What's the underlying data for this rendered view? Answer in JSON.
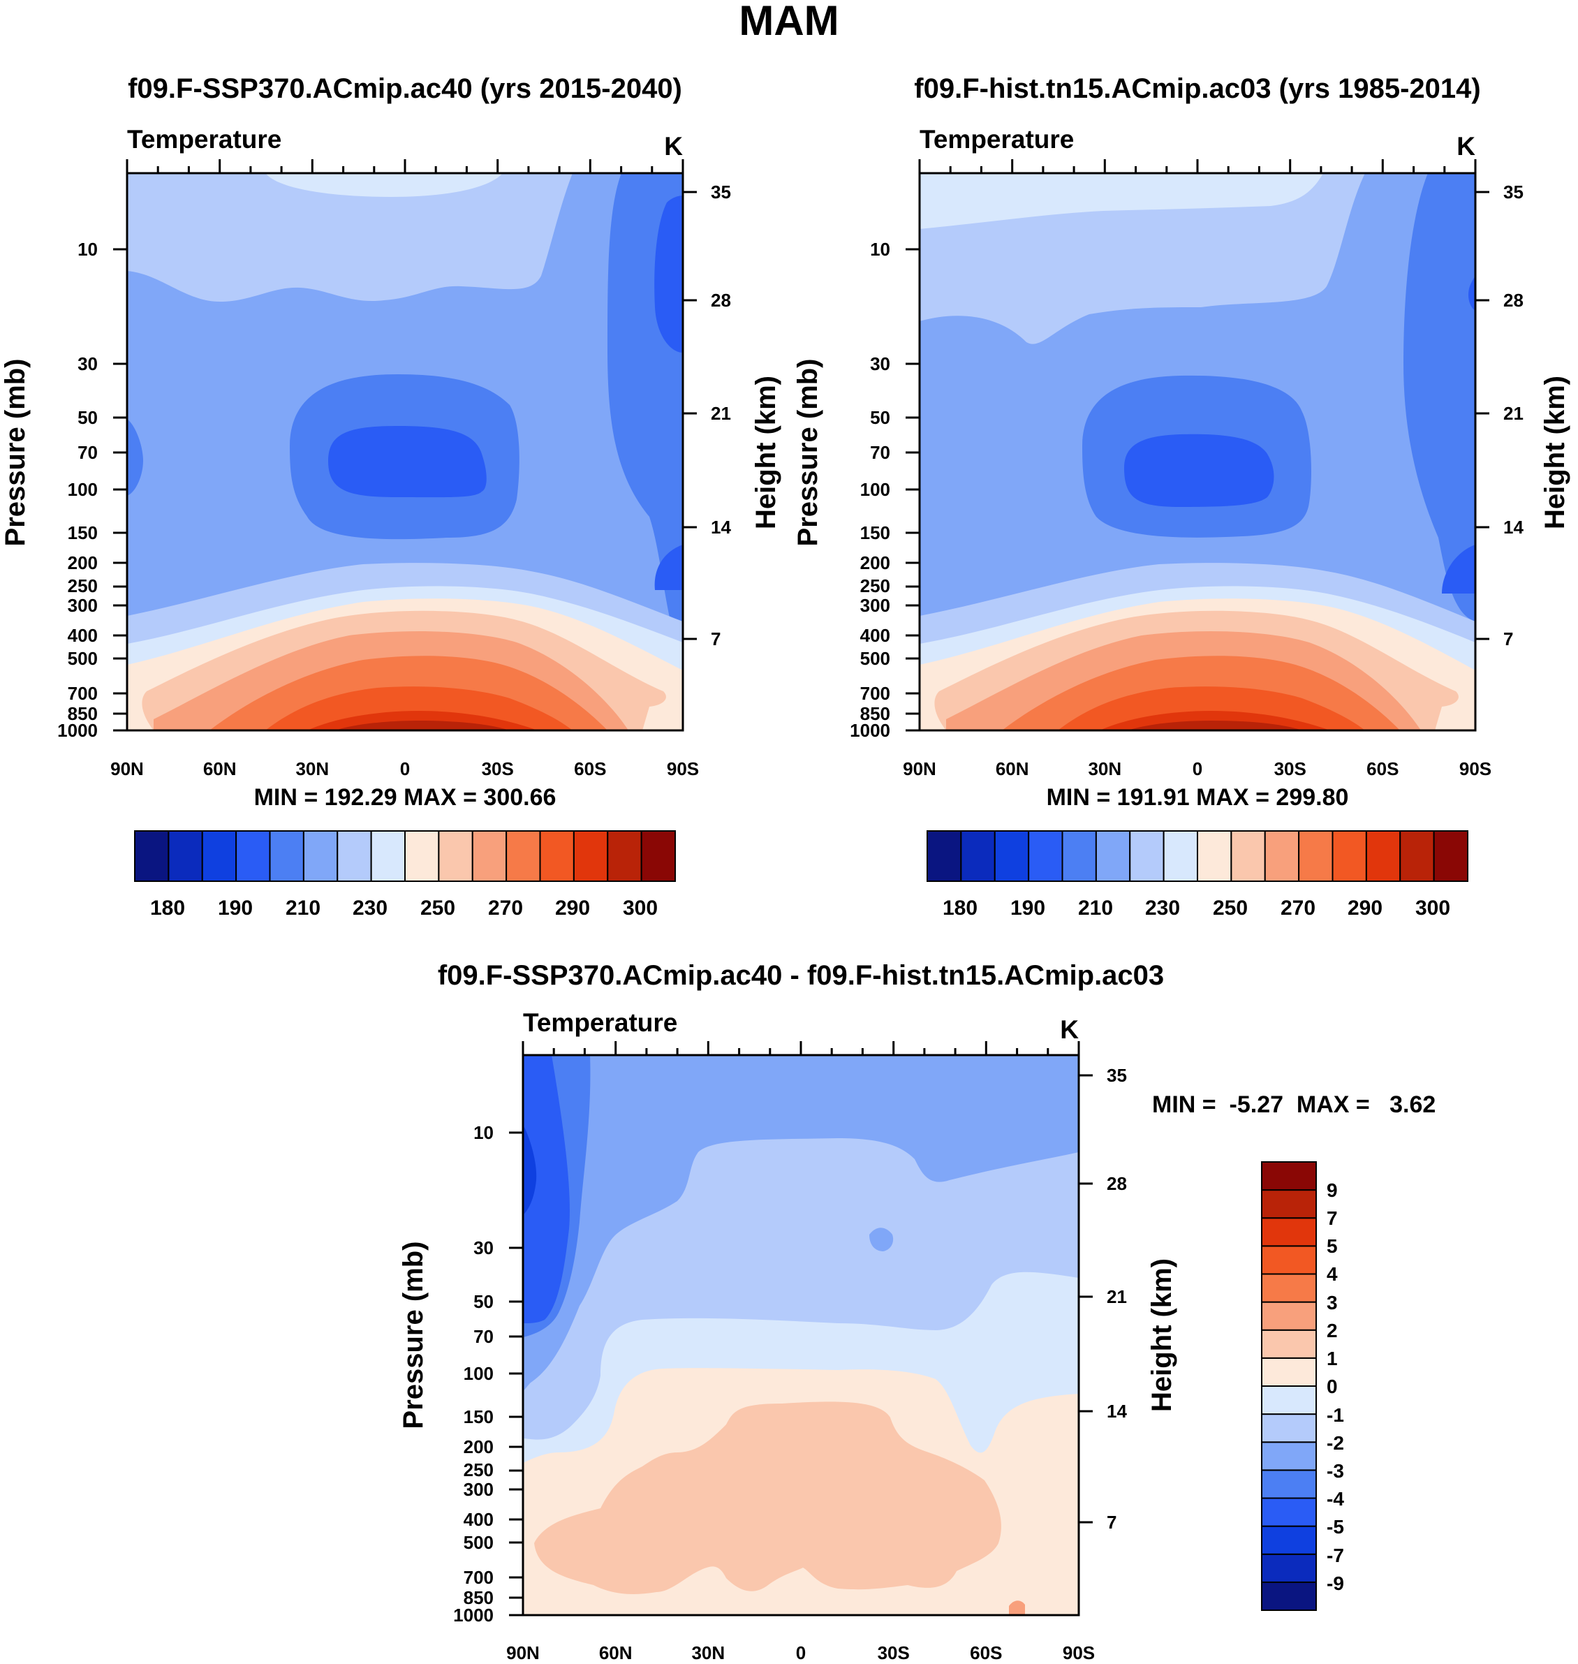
{
  "chart_data": {
    "title": "MAM",
    "type": "contour",
    "panels": [
      {
        "title": "f09.F-SSP370.ACmip.ac40 (yrs 2015-2040)",
        "variable": "Temperature",
        "units": "K",
        "ylabel": "Pressure (mb)",
        "ylabel_right": "Height (km)",
        "x_ticks": [
          "90N",
          "60N",
          "30N",
          "0",
          "30S",
          "60S",
          "90S"
        ],
        "y_ticks": [
          "10",
          "30",
          "50",
          "70",
          "100",
          "150",
          "200",
          "250",
          "300",
          "400",
          "500",
          "700",
          "850",
          "1000"
        ],
        "height_ticks": [
          "35",
          "28",
          "21",
          "14",
          "7"
        ],
        "stats": "MIN = 192.29  MAX = 300.66",
        "min": 192.29,
        "max": 300.66
      },
      {
        "title": "f09.F-hist.tn15.ACmip.ac03 (yrs 1985-2014)",
        "variable": "Temperature",
        "units": "K",
        "ylabel": "Pressure (mb)",
        "ylabel_right": "Height (km)",
        "x_ticks": [
          "90N",
          "60N",
          "30N",
          "0",
          "30S",
          "60S",
          "90S"
        ],
        "y_ticks": [
          "10",
          "30",
          "50",
          "70",
          "100",
          "150",
          "200",
          "250",
          "300",
          "400",
          "500",
          "700",
          "850",
          "1000"
        ],
        "height_ticks": [
          "35",
          "28",
          "21",
          "14",
          "7"
        ],
        "stats": "MIN = 191.91  MAX = 299.80",
        "min": 191.91,
        "max": 299.8
      },
      {
        "title": "f09.F-SSP370.ACmip.ac40 - f09.F-hist.tn15.ACmip.ac03",
        "variable": "Temperature",
        "units": "K",
        "ylabel": "Pressure (mb)",
        "ylabel_right": "Height (km)",
        "x_ticks": [
          "90N",
          "60N",
          "30N",
          "0",
          "30S",
          "60S",
          "90S"
        ],
        "y_ticks": [
          "10",
          "30",
          "50",
          "70",
          "100",
          "150",
          "200",
          "250",
          "300",
          "400",
          "500",
          "700",
          "850",
          "1000"
        ],
        "height_ticks": [
          "35",
          "28",
          "21",
          "14",
          "7"
        ],
        "stats": "MIN =  -5.27  MAX =   3.62",
        "min": -5.27,
        "max": 3.62
      }
    ],
    "abs_colorbar": {
      "colors": [
        "#0a1581",
        "#0b2bbd",
        "#0f40e0",
        "#2a5cf5",
        "#4c7ff3",
        "#80a7f8",
        "#b4cbfb",
        "#d8e8fd",
        "#fde9da",
        "#fac7ad",
        "#f8a07c",
        "#f67a48",
        "#f25823",
        "#e1360c",
        "#b92308",
        "#8a0705"
      ],
      "labels": [
        "180",
        "190",
        "210",
        "230",
        "250",
        "270",
        "290",
        "300"
      ]
    },
    "diff_colorbar": {
      "colors": [
        "#0a1581",
        "#0b2bbd",
        "#0f40e0",
        "#2a5cf5",
        "#4c7ff3",
        "#80a7f8",
        "#b4cbfb",
        "#d8e8fd",
        "#fde9da",
        "#fac7ad",
        "#f8a07c",
        "#f67a48",
        "#f25823",
        "#e1360c",
        "#b92308",
        "#8a0705"
      ],
      "labels": [
        "-9",
        "-7",
        "-5",
        "-4",
        "-3",
        "-2",
        "-1",
        "0",
        "1",
        "2",
        "3",
        "4",
        "5",
        "7",
        "9"
      ]
    },
    "palette": {
      "c0": "#0a1581",
      "c1": "#0b2bbd",
      "c2": "#0f40e0",
      "c3": "#2a5cf5",
      "c4": "#4c7ff3",
      "c5": "#80a7f8",
      "c6": "#b4cbfb",
      "c7": "#d8e8fd",
      "c8": "#fde9da",
      "c9": "#fac7ad",
      "c10": "#f8a07c",
      "c11": "#f67a48",
      "c12": "#f25823",
      "c13": "#e1360c",
      "c14": "#b92308",
      "c15": "#8a0705"
    }
  }
}
